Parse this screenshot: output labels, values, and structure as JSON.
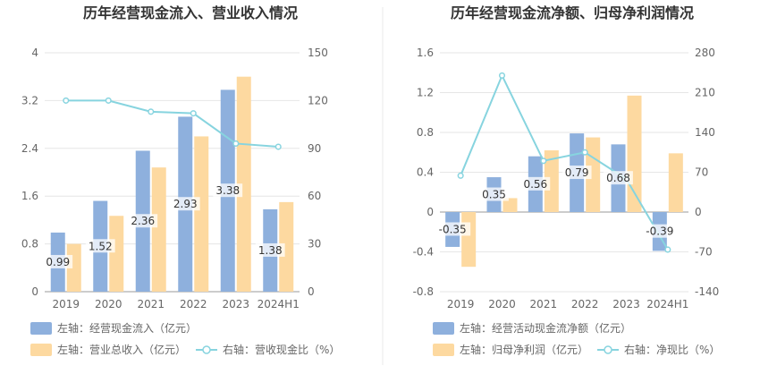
{
  "colors": {
    "bar_blue": "#8eb0dd",
    "bar_orange": "#fdd9a0",
    "line": "#87d4df",
    "divider": "#e8e8e8"
  },
  "chart_data": [
    {
      "type": "bar",
      "title": "历年经营现金流入、营业收入情况",
      "categories": [
        "2019",
        "2020",
        "2021",
        "2022",
        "2023",
        "2024H1"
      ],
      "series": [
        {
          "name": "左轴：经营现金流入（亿元）",
          "axis": "left",
          "type": "bar",
          "values": [
            0.99,
            1.52,
            2.36,
            2.93,
            3.38,
            1.38
          ],
          "labels": true
        },
        {
          "name": "左轴：营业总收入（亿元）",
          "axis": "left",
          "type": "bar",
          "values": [
            0.8,
            1.27,
            2.08,
            2.6,
            3.6,
            1.5
          ],
          "labels": false
        },
        {
          "name": "右轴：营收现金比（%）",
          "axis": "right",
          "type": "line",
          "values": [
            120,
            120,
            113,
            112,
            93,
            91
          ],
          "labels": false
        }
      ],
      "y_left": {
        "range": [
          0,
          4
        ],
        "ticks": [
          "0",
          "0.8",
          "1.6",
          "2.4",
          "3.2",
          "4"
        ]
      },
      "y_right": {
        "range": [
          0,
          150
        ],
        "ticks": [
          "0",
          "30",
          "60",
          "90",
          "120",
          "150"
        ]
      },
      "legend_position": "bottom"
    },
    {
      "type": "bar",
      "title": "历年经营现金流净额、归母净利润情况",
      "categories": [
        "2019",
        "2020",
        "2021",
        "2022",
        "2023",
        "2024H1"
      ],
      "series": [
        {
          "name": "左轴：经营活动现金流净额（亿元）",
          "axis": "left",
          "type": "bar",
          "values": [
            -0.35,
            0.35,
            0.56,
            0.79,
            0.68,
            -0.39
          ],
          "labels": true
        },
        {
          "name": "左轴：归母净利润（亿元）",
          "axis": "left",
          "type": "bar",
          "values": [
            -0.55,
            0.14,
            0.62,
            0.75,
            1.17,
            0.59
          ],
          "labels": false
        },
        {
          "name": "右轴：净现比（%）",
          "axis": "right",
          "type": "line",
          "values": [
            64,
            240,
            90,
            105,
            58,
            -66
          ],
          "labels": false
        }
      ],
      "y_left": {
        "range": [
          -0.8,
          1.6
        ],
        "ticks": [
          "-0.8",
          "-0.4",
          "0",
          "0.4",
          "0.8",
          "1.2",
          "1.6"
        ]
      },
      "y_right": {
        "range": [
          -140,
          280
        ],
        "ticks": [
          "-140",
          "-70",
          "0",
          "70",
          "140",
          "210",
          "280"
        ]
      },
      "legend_position": "bottom"
    }
  ]
}
